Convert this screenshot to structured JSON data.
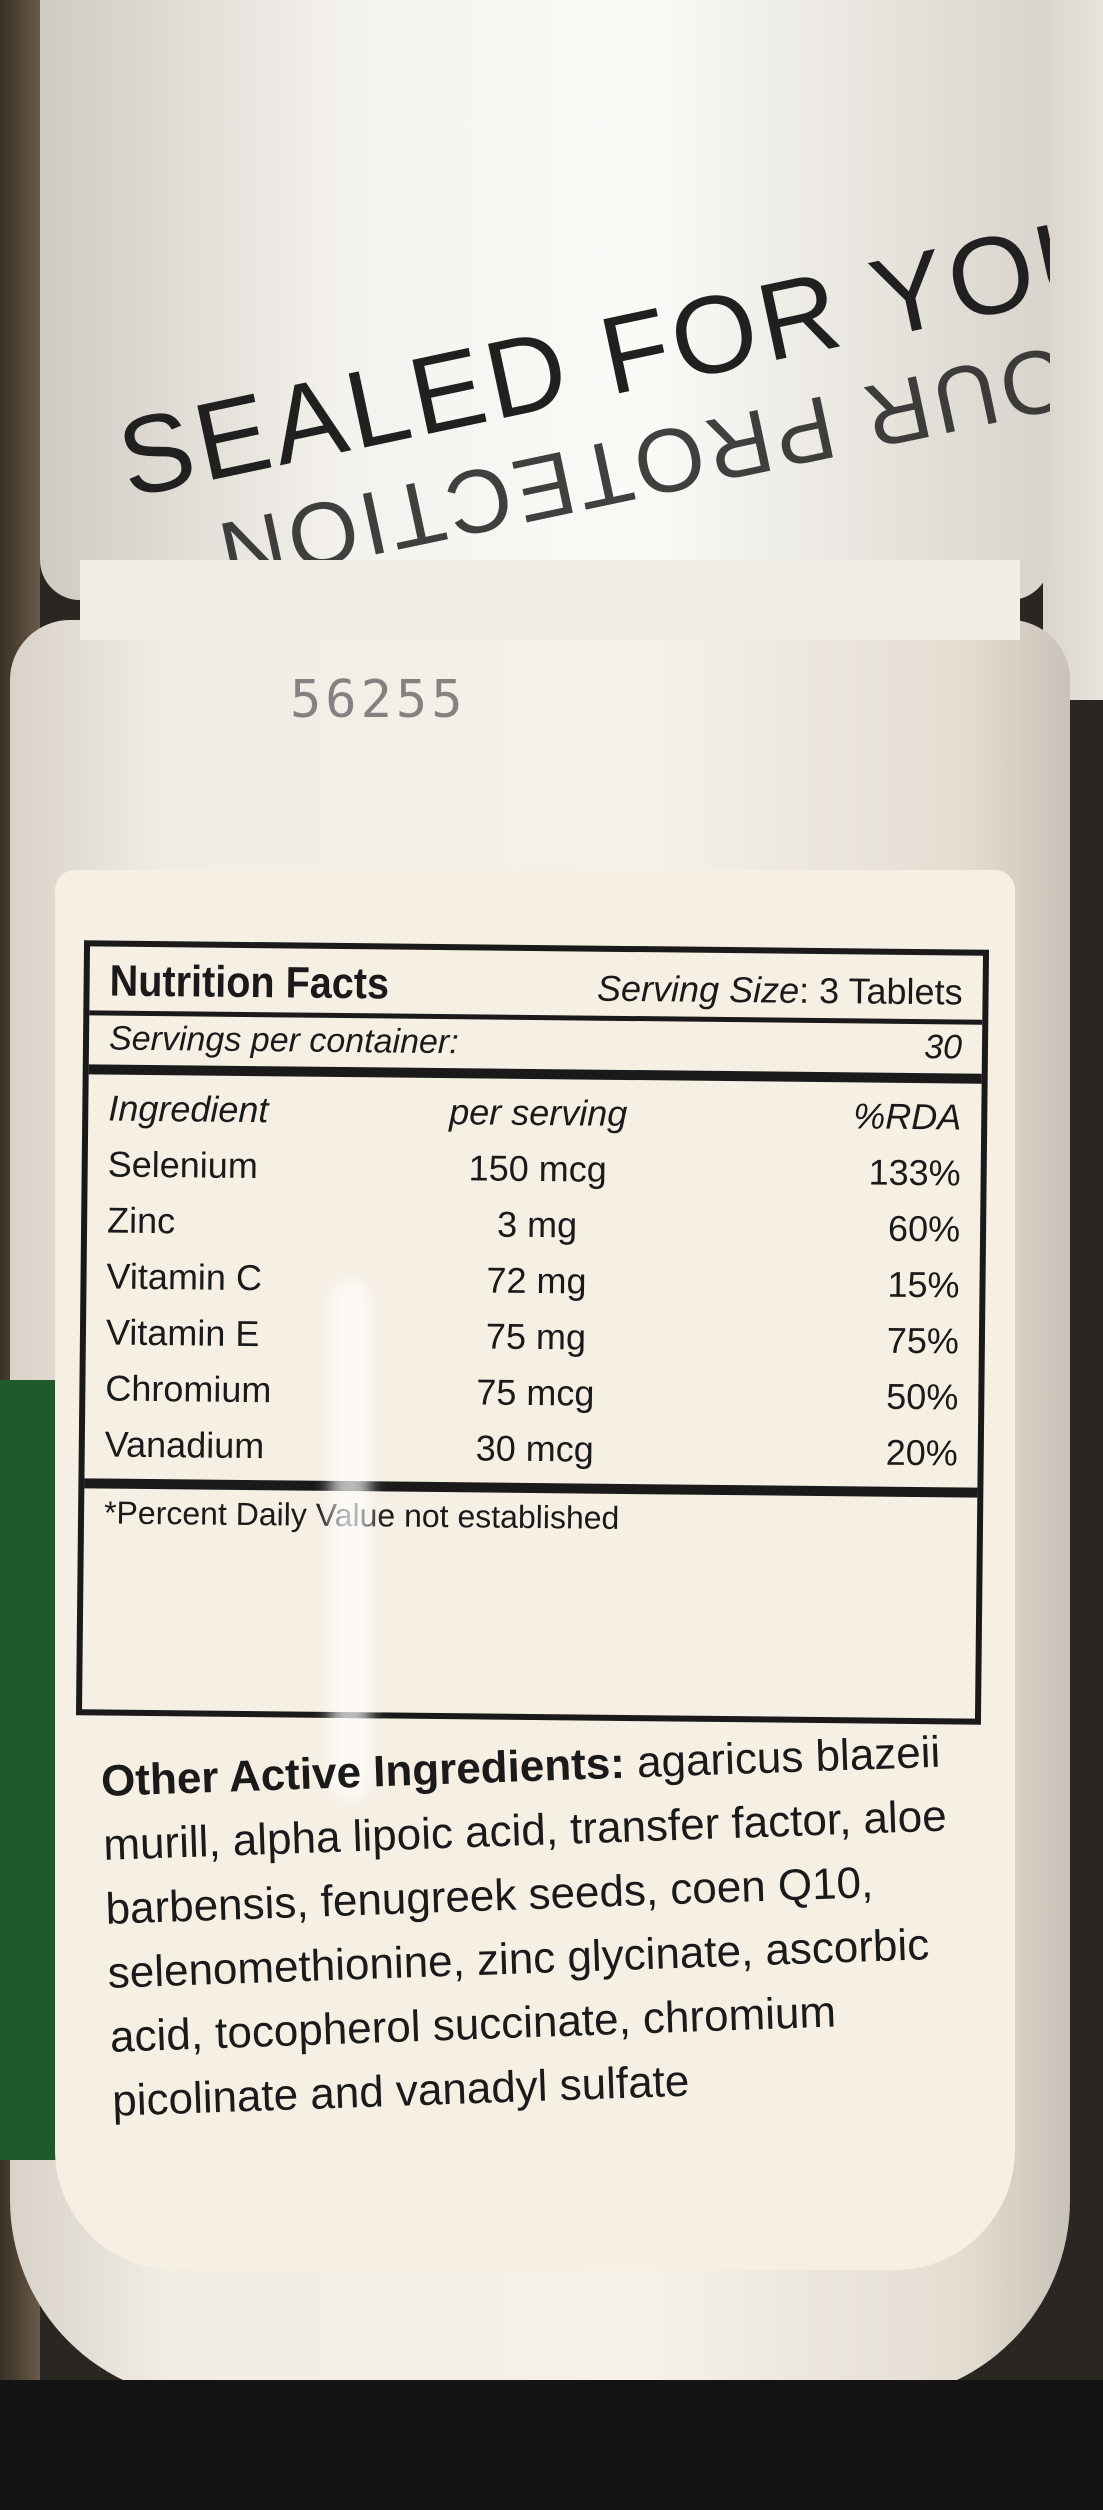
{
  "cap": {
    "seal_text": "SEALED FOR YOUR PROTECTION",
    "seal_text_2": "SEALED FOR YOUR PROTECTION"
  },
  "lot_code": "56255",
  "nutrition_facts": {
    "title": "Nutrition Facts",
    "serving_size_label": "Serving Size",
    "serving_size_value": ": 3 Tablets",
    "servings_label": "Servings per container:",
    "servings_value": "30",
    "headers": {
      "ingredient": "Ingredient",
      "per_serving": "per serving",
      "rda": "%RDA"
    },
    "rows": [
      {
        "ingredient": "Selenium",
        "amount": "150 mcg",
        "rda": "133%"
      },
      {
        "ingredient": "Zinc",
        "amount": "3 mg",
        "rda": "60%"
      },
      {
        "ingredient": "Vitamin C",
        "amount": "72 mg",
        "rda": "15%"
      },
      {
        "ingredient": "Vitamin E",
        "amount": "75 mg",
        "rda": "75%"
      },
      {
        "ingredient": "Chromium",
        "amount": "75 mcg",
        "rda": "50%"
      },
      {
        "ingredient": "Vanadium",
        "amount": "30 mcg",
        "rda": "20%"
      }
    ],
    "footnote": "*Percent Daily Value not established"
  },
  "other_ingredients": {
    "label": "Other Active Ingredients:",
    "text": "agaricus blazeii murill, alpha lipoic acid, transfer factor, aloe barbensis, fenugreek seeds, coen Q10, selenomethionine, zinc glycinate, ascorbic acid, tocopherol succinate, chromium picolinate and vanadyl sulfate"
  },
  "colors": {
    "label_bg": "#f5efe4",
    "green_band": "#1f5a2c",
    "ink": "#1a1a1a"
  }
}
